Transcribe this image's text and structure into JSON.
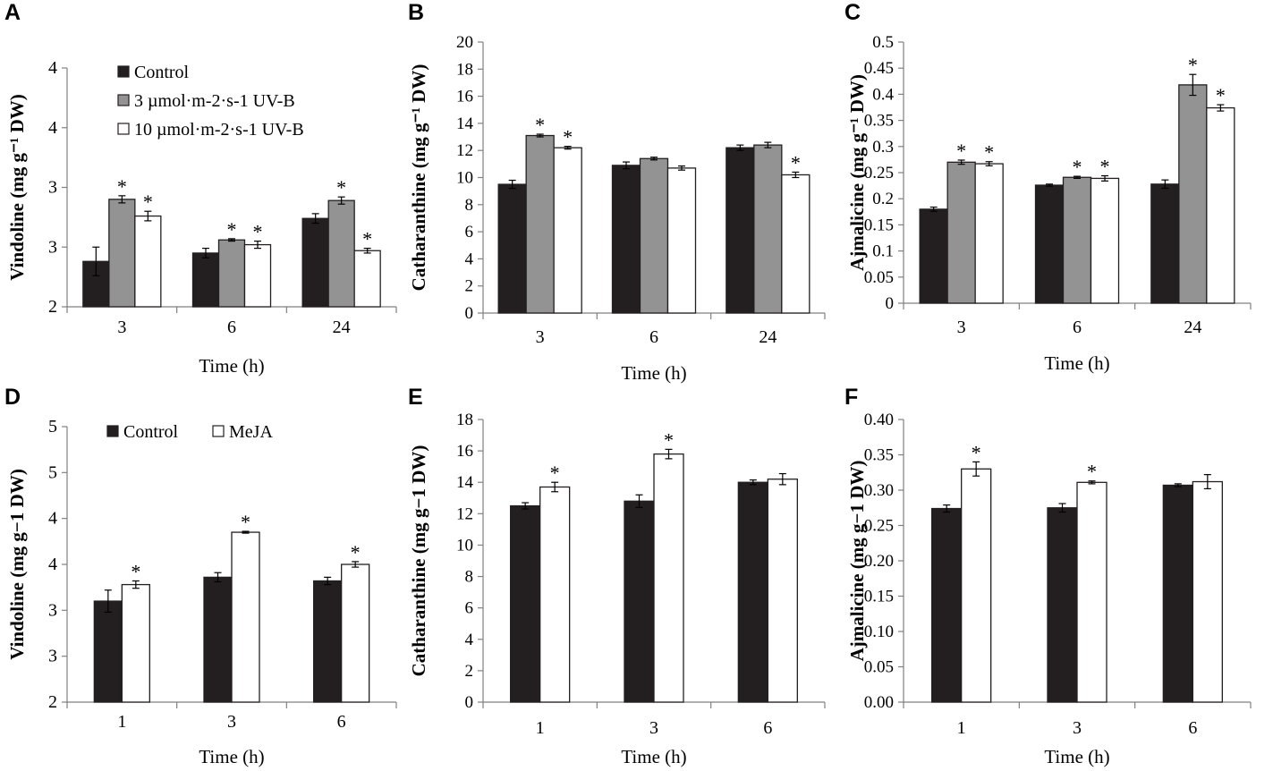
{
  "figure": {
    "panel_letters": [
      "A",
      "B",
      "C",
      "D",
      "E",
      "F"
    ]
  },
  "chart_data": [
    {
      "panel": "A",
      "type": "bar",
      "ylabel": "Vindoline (mg g⁻¹ DW)",
      "xlabel": "Time (h)",
      "categories": [
        "3",
        "6",
        "24"
      ],
      "ylim": [
        2,
        4
      ],
      "ytick_values": [
        2,
        2.5,
        3,
        3.5,
        4
      ],
      "ytick_labels": [
        "2",
        "3",
        "3",
        "4",
        "4"
      ],
      "legend": [
        "Control",
        "3 µmol·m-2·s-1 UV-B",
        "10 µmol·m-2·s-1 UV-B"
      ],
      "series": [
        {
          "name": "Control",
          "color": "#231f20",
          "values": [
            2.38,
            2.45,
            2.74
          ],
          "errors": [
            0.12,
            0.04,
            0.04
          ],
          "sig": [
            false,
            false,
            false
          ]
        },
        {
          "name": "3 µmol·m-2·s-1 UV-B",
          "color": "#939393",
          "values": [
            2.9,
            2.56,
            2.89
          ],
          "errors": [
            0.03,
            0.01,
            0.03
          ],
          "sig": [
            true,
            true,
            true
          ]
        },
        {
          "name": "10 µmol·m-2·s-1 UV-B",
          "color": "#ffffff",
          "values": [
            2.76,
            2.52,
            2.47
          ],
          "errors": [
            0.04,
            0.03,
            0.02
          ],
          "sig": [
            true,
            true,
            true
          ]
        }
      ]
    },
    {
      "panel": "B",
      "type": "bar",
      "ylabel": "Catharanthine (mg g⁻¹ DW)",
      "xlabel": "Time (h)",
      "categories": [
        "3",
        "6",
        "24"
      ],
      "ylim": [
        0,
        20
      ],
      "ytick_values": [
        0,
        2,
        4,
        6,
        8,
        10,
        12,
        14,
        16,
        18,
        20
      ],
      "ytick_labels": [
        "0",
        "2",
        "4",
        "6",
        "8",
        "10",
        "12",
        "14",
        "16",
        "18",
        "20"
      ],
      "series": [
        {
          "name": "Control",
          "color": "#231f20",
          "values": [
            9.5,
            10.9,
            12.2
          ],
          "errors": [
            0.3,
            0.25,
            0.2
          ],
          "sig": [
            false,
            false,
            false
          ]
        },
        {
          "name": "3 µmol·m-2·s-1 UV-B",
          "color": "#939393",
          "values": [
            13.1,
            11.4,
            12.4
          ],
          "errors": [
            0.1,
            0.1,
            0.2
          ],
          "sig": [
            true,
            false,
            false
          ]
        },
        {
          "name": "10 µmol·m-2·s-1 UV-B",
          "color": "#ffffff",
          "values": [
            12.2,
            10.7,
            10.2
          ],
          "errors": [
            0.1,
            0.15,
            0.2
          ],
          "sig": [
            true,
            false,
            true
          ]
        }
      ]
    },
    {
      "panel": "C",
      "type": "bar",
      "ylabel": "Ajmalicine (mg g⁻¹ DW)",
      "xlabel": "Time (h)",
      "categories": [
        "3",
        "6",
        "24"
      ],
      "ylim": [
        0,
        0.5
      ],
      "ytick_values": [
        0,
        0.05,
        0.1,
        0.15,
        0.2,
        0.25,
        0.3,
        0.35,
        0.4,
        0.45,
        0.5
      ],
      "ytick_labels": [
        "0",
        "0.05",
        "0.1",
        "0.15",
        "0.2",
        "0.25",
        "0.3",
        "0.35",
        "0.4",
        "0.45",
        "0.5"
      ],
      "series": [
        {
          "name": "Control",
          "color": "#231f20",
          "values": [
            0.18,
            0.226,
            0.228
          ],
          "errors": [
            0.004,
            0.002,
            0.008
          ],
          "sig": [
            false,
            false,
            false
          ]
        },
        {
          "name": "3 µmol·m-2·s-1 UV-B",
          "color": "#939393",
          "values": [
            0.27,
            0.241,
            0.418
          ],
          "errors": [
            0.004,
            0.002,
            0.02
          ],
          "sig": [
            true,
            true,
            true
          ]
        },
        {
          "name": "10 µmol·m-2·s-1 UV-B",
          "color": "#ffffff",
          "values": [
            0.267,
            0.239,
            0.374
          ],
          "errors": [
            0.004,
            0.005,
            0.006
          ],
          "sig": [
            true,
            true,
            true
          ]
        }
      ]
    },
    {
      "panel": "D",
      "type": "bar",
      "ylabel": "Vindoline (mg g−1 DW)",
      "xlabel": "Time (h)",
      "categories": [
        "1",
        "3",
        "6"
      ],
      "ylim": [
        2,
        5
      ],
      "ytick_values": [
        2,
        2.5,
        3,
        3.5,
        4,
        4.5,
        5
      ],
      "ytick_labels": [
        "2",
        "3",
        "3",
        "4",
        "4",
        "5",
        "5"
      ],
      "legend": [
        "Control",
        "MeJA"
      ],
      "series": [
        {
          "name": "Control",
          "color": "#231f20",
          "values": [
            3.1,
            3.36,
            3.32
          ],
          "errors": [
            0.12,
            0.05,
            0.04
          ],
          "sig": [
            false,
            false,
            false
          ]
        },
        {
          "name": "MeJA",
          "color": "#ffffff",
          "values": [
            3.28,
            3.85,
            3.5
          ],
          "errors": [
            0.04,
            0.01,
            0.03
          ],
          "sig": [
            true,
            true,
            true
          ]
        }
      ]
    },
    {
      "panel": "E",
      "type": "bar",
      "ylabel": "Catharanthine (mg g−1 DW)",
      "xlabel": "Time (h)",
      "categories": [
        "1",
        "3",
        "6"
      ],
      "ylim": [
        0,
        18
      ],
      "ytick_values": [
        0,
        2,
        4,
        6,
        8,
        10,
        12,
        14,
        16,
        18
      ],
      "ytick_labels": [
        "0",
        "2",
        "4",
        "6",
        "8",
        "10",
        "12",
        "14",
        "16",
        "18"
      ],
      "series": [
        {
          "name": "Control",
          "color": "#231f20",
          "values": [
            12.5,
            12.8,
            14.0
          ],
          "errors": [
            0.2,
            0.4,
            0.15
          ],
          "sig": [
            false,
            false,
            false
          ]
        },
        {
          "name": "MeJA",
          "color": "#ffffff",
          "values": [
            13.7,
            15.8,
            14.2
          ],
          "errors": [
            0.3,
            0.3,
            0.35
          ],
          "sig": [
            true,
            true,
            false
          ]
        }
      ]
    },
    {
      "panel": "F",
      "type": "bar",
      "ylabel": "Ajmalicine (mg g−1 DW)",
      "xlabel": "Time (h)",
      "categories": [
        "1",
        "3",
        "6"
      ],
      "ylim": [
        0,
        0.4
      ],
      "ytick_values": [
        0,
        0.05,
        0.1,
        0.15,
        0.2,
        0.25,
        0.3,
        0.35,
        0.4
      ],
      "ytick_labels": [
        "0.00",
        "0.05",
        "0.10",
        "0.15",
        "0.20",
        "0.25",
        "0.30",
        "0.35",
        "0.40"
      ],
      "series": [
        {
          "name": "Control",
          "color": "#231f20",
          "values": [
            0.274,
            0.275,
            0.307
          ],
          "errors": [
            0.005,
            0.006,
            0.002
          ],
          "sig": [
            false,
            false,
            false
          ]
        },
        {
          "name": "MeJA",
          "color": "#ffffff",
          "values": [
            0.33,
            0.311,
            0.312
          ],
          "errors": [
            0.01,
            0.002,
            0.01
          ],
          "sig": [
            true,
            true,
            false
          ]
        }
      ]
    }
  ]
}
